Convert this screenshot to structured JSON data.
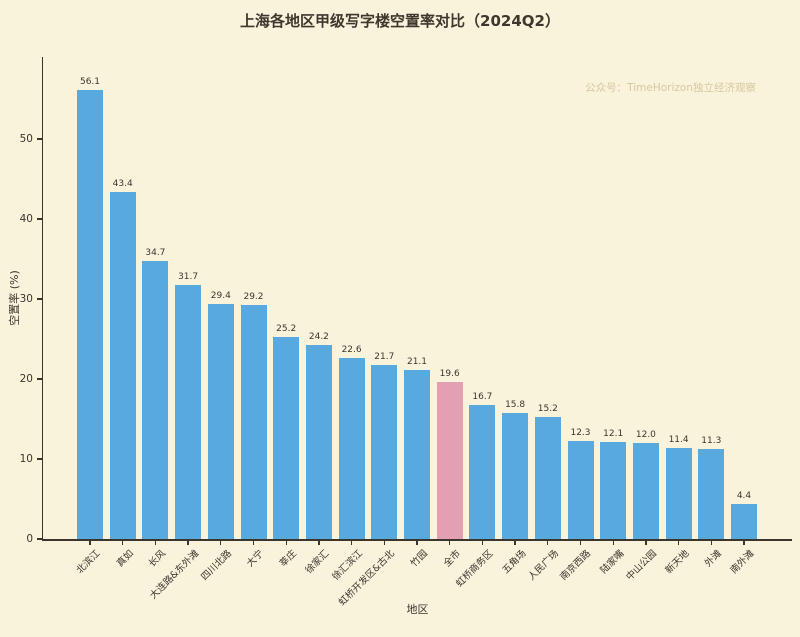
{
  "page": {
    "title": "上海各地区甲级写字楼空置率对比（2024Q2）",
    "watermark": "公众号：TimeHorizon独立经济观察"
  },
  "chart_data": {
    "type": "bar",
    "title": "上海各地区甲级写字楼空置率对比（2024Q2）",
    "xlabel": "地区",
    "ylabel": "空置率 (%)",
    "categories": [
      "北滨江",
      "真如",
      "长风",
      "大连路&东外滩",
      "四川北路",
      "大宁",
      "莘庄",
      "徐家汇",
      "徐汇滨江",
      "虹桥开发区&古北",
      "竹园",
      "全市",
      "虹桥商务区",
      "五角场",
      "人民广场",
      "南京西路",
      "陆家嘴",
      "中山公园",
      "新天地",
      "外滩",
      "南外滩"
    ],
    "values": [
      56.1,
      43.4,
      34.7,
      31.7,
      29.4,
      29.2,
      25.2,
      24.2,
      22.6,
      21.7,
      21.1,
      19.6,
      16.7,
      15.8,
      15.2,
      12.3,
      12.1,
      12.0,
      11.4,
      11.3,
      4.4
    ],
    "highlight_category": "全市",
    "highlight_index": 11,
    "yticks": [
      0,
      10,
      20,
      30,
      40,
      50
    ],
    "ylim": [
      0,
      60.25
    ],
    "grid": false,
    "legend": "none",
    "colors": {
      "bar": "#58a9de",
      "highlight_bar": "#e59fb2",
      "background": "#faf3dc",
      "axis": "#3a352e",
      "watermark": "#d6c79d"
    }
  }
}
